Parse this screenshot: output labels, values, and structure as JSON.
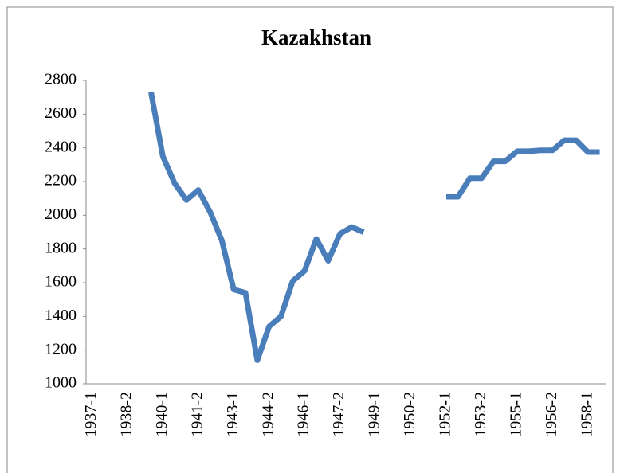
{
  "chart_data": {
    "type": "line",
    "title": "Kazakhstan",
    "categories": [
      "1937-1",
      null,
      null,
      "1938-2",
      null,
      null,
      "1940-1",
      null,
      null,
      "1941-2",
      null,
      null,
      "1943-1",
      null,
      null,
      "1944-2",
      null,
      null,
      "1946-1",
      null,
      null,
      "1947-2",
      null,
      null,
      "1949-1",
      null,
      null,
      "1950-2",
      null,
      null,
      "1952-1",
      null,
      null,
      "1953-2",
      null,
      null,
      "1955-1",
      null,
      null,
      "1956-2",
      null,
      null,
      "1958-1",
      null
    ],
    "values": [
      null,
      null,
      null,
      null,
      null,
      2730,
      2350,
      2190,
      2090,
      2150,
      2020,
      1850,
      1560,
      1540,
      1140,
      1340,
      1400,
      1610,
      1670,
      1860,
      1730,
      1890,
      1930,
      1900,
      null,
      null,
      null,
      null,
      null,
      null,
      2110,
      2110,
      2220,
      2220,
      2320,
      2320,
      2380,
      2380,
      2385,
      2385,
      2445,
      2445,
      2375,
      2375
    ],
    "color": "#4a7ebb",
    "ylim": [
      1000,
      2800
    ],
    "yticks": [
      1000,
      1200,
      1400,
      1600,
      1800,
      2000,
      2200,
      2400,
      2600,
      2800
    ]
  }
}
